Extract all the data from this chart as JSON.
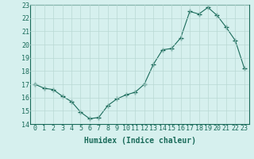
{
  "x": [
    0,
    1,
    2,
    3,
    4,
    5,
    6,
    7,
    8,
    9,
    10,
    11,
    12,
    13,
    14,
    15,
    16,
    17,
    18,
    19,
    20,
    21,
    22,
    23
  ],
  "y": [
    17.0,
    16.7,
    16.6,
    16.1,
    15.7,
    14.9,
    14.4,
    14.5,
    15.4,
    15.9,
    16.2,
    16.4,
    17.0,
    18.5,
    19.6,
    19.7,
    20.5,
    22.5,
    22.3,
    22.8,
    22.2,
    21.3,
    20.3,
    18.2
  ],
  "line_color": "#1a6b5a",
  "marker": "+",
  "marker_size": 4,
  "bg_color": "#d6f0ee",
  "grid_color": "#b8d8d4",
  "xlabel": "Humidex (Indice chaleur)",
  "xlim": [
    -0.5,
    23.5
  ],
  "ylim": [
    14,
    23
  ],
  "yticks": [
    14,
    15,
    16,
    17,
    18,
    19,
    20,
    21,
    22,
    23
  ],
  "xticks": [
    0,
    1,
    2,
    3,
    4,
    5,
    6,
    7,
    8,
    9,
    10,
    11,
    12,
    13,
    14,
    15,
    16,
    17,
    18,
    19,
    20,
    21,
    22,
    23
  ],
  "label_fontsize": 7,
  "tick_fontsize": 6
}
